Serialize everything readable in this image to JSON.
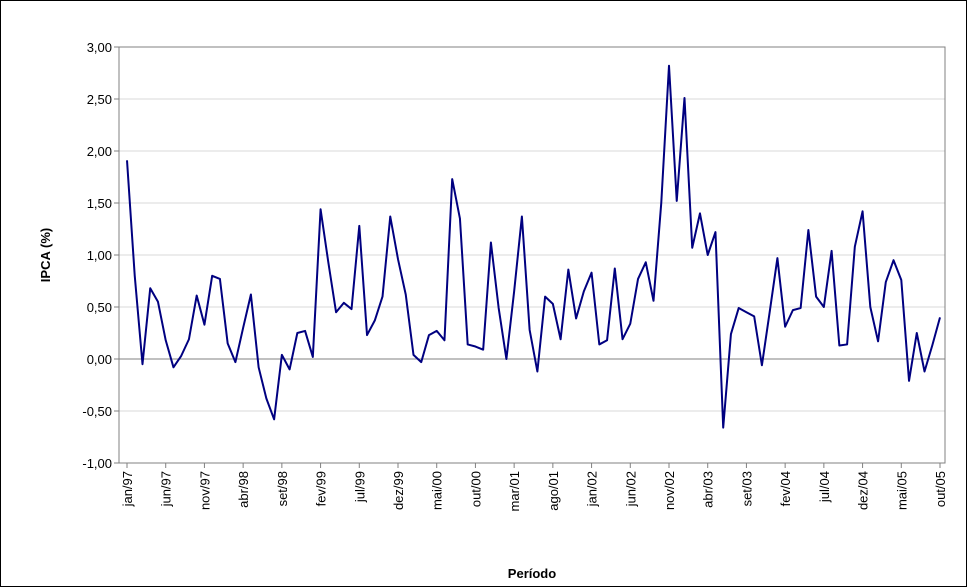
{
  "chart_data": {
    "type": "line",
    "x_label": "Período",
    "y_label": "IPCA (%)",
    "categories": [
      "jan/97",
      null,
      null,
      null,
      null,
      "jun/97",
      null,
      null,
      null,
      null,
      "nov/97",
      null,
      null,
      null,
      null,
      "abr/98",
      null,
      null,
      null,
      null,
      "set/98",
      null,
      null,
      null,
      null,
      "fev/99",
      null,
      null,
      null,
      null,
      "jul/99",
      null,
      null,
      null,
      null,
      "dez/99",
      null,
      null,
      null,
      null,
      "mai/00",
      null,
      null,
      null,
      null,
      "out/00",
      null,
      null,
      null,
      null,
      "mar/01",
      null,
      null,
      null,
      null,
      "ago/01",
      null,
      null,
      null,
      null,
      "jan/02",
      null,
      null,
      null,
      null,
      "jun/02",
      null,
      null,
      null,
      null,
      "nov/02",
      null,
      null,
      null,
      null,
      "abr/03",
      null,
      null,
      null,
      null,
      "set/03",
      null,
      null,
      null,
      null,
      "fev/04",
      null,
      null,
      null,
      null,
      "jul/04",
      null,
      null,
      null,
      null,
      "dez/04",
      null,
      null,
      null,
      null,
      "mai/05",
      null,
      null,
      null,
      null,
      "out/05"
    ],
    "series": [
      {
        "name": "IPCA",
        "color": "#000080",
        "values": [
          1.91,
          0.8,
          -0.05,
          0.68,
          0.55,
          0.18,
          -0.08,
          0.03,
          0.19,
          0.61,
          0.33,
          0.8,
          0.77,
          0.15,
          -0.03,
          0.3,
          0.62,
          -0.08,
          -0.38,
          -0.58,
          0.04,
          -0.1,
          0.25,
          0.27,
          0.02,
          1.44,
          0.93,
          0.45,
          0.54,
          0.48,
          1.28,
          0.23,
          0.37,
          0.6,
          1.37,
          0.96,
          0.62,
          0.04,
          -0.03,
          0.23,
          0.27,
          0.18,
          1.73,
          1.35,
          0.14,
          0.12,
          0.09,
          1.12,
          0.49,
          0.0,
          0.65,
          1.37,
          0.28,
          -0.12,
          0.6,
          0.53,
          0.19,
          0.86,
          0.39,
          0.65,
          0.83,
          0.14,
          0.18,
          0.87,
          0.19,
          0.34,
          0.77,
          0.93,
          0.56,
          1.5,
          2.82,
          1.52,
          2.51,
          1.07,
          1.4,
          1.0,
          1.22,
          -0.66,
          0.24,
          0.49,
          0.45,
          0.41,
          -0.06,
          0.45,
          0.97,
          0.31,
          0.47,
          0.49,
          1.24,
          0.6,
          0.5,
          1.04,
          0.13,
          0.14,
          1.08,
          1.42,
          0.5,
          0.17,
          0.74,
          0.95,
          0.76,
          -0.21,
          0.25,
          -0.12,
          0.13,
          0.4
        ]
      }
    ],
    "ylim": [
      -1,
      3
    ],
    "yticks": [
      {
        "value": -1,
        "label": "-1,00"
      },
      {
        "value": -0.5,
        "label": "-0,50"
      },
      {
        "value": 0,
        "label": "0,00"
      },
      {
        "value": 0.5,
        "label": "0,50"
      },
      {
        "value": 1,
        "label": "1,00"
      },
      {
        "value": 1.5,
        "label": "1,50"
      },
      {
        "value": 2,
        "label": "2,00"
      },
      {
        "value": 2.5,
        "label": "2,50"
      },
      {
        "value": 3,
        "label": "3,00"
      }
    ],
    "grid": true
  }
}
